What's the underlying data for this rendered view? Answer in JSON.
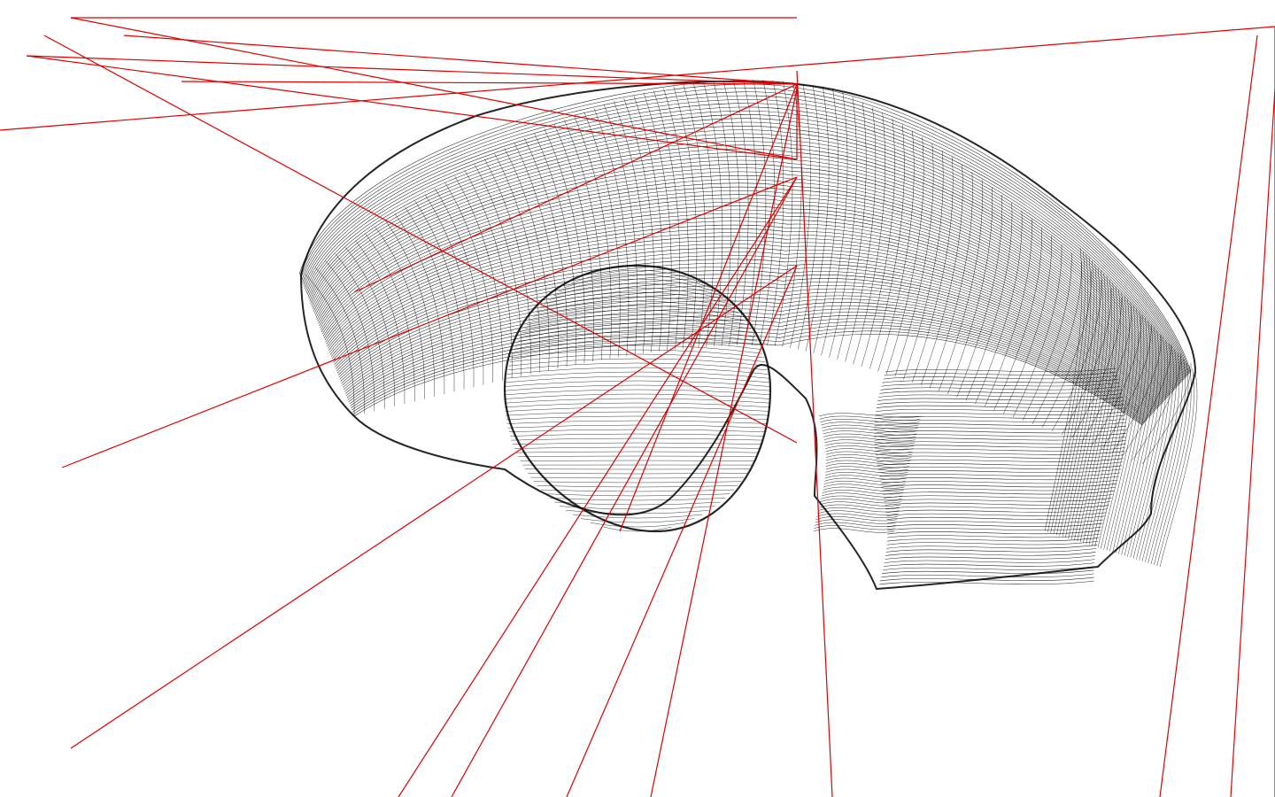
{
  "scene": {
    "description_visible": false,
    "background_color": "#ffffff",
    "wireframe_color": "#000000",
    "ray_color": "#e00000"
  }
}
